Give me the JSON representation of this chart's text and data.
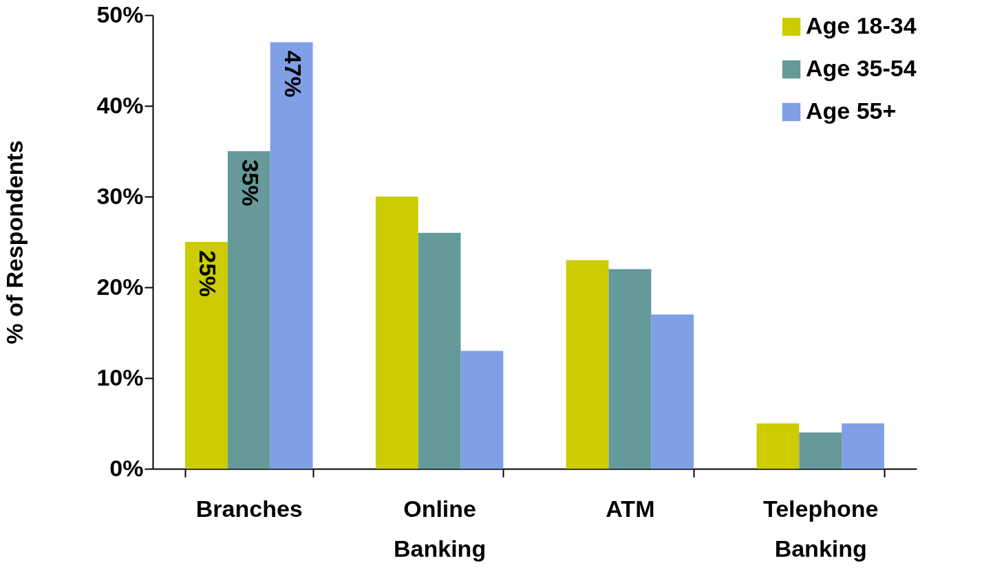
{
  "chart_data": {
    "type": "bar",
    "ylabel": "% of Respondents",
    "categories": [
      "Branches",
      "Online Banking",
      "ATM",
      "Telephone Banking"
    ],
    "series": [
      {
        "name": "Age 18-34",
        "color": "#cccc00",
        "values": [
          25,
          30,
          23,
          5
        ],
        "value_labels": [
          "25%",
          null,
          null,
          null
        ]
      },
      {
        "name": "Age 35-54",
        "color": "#669999",
        "values": [
          35,
          26,
          22,
          4
        ],
        "value_labels": [
          "35%",
          null,
          null,
          null
        ]
      },
      {
        "name": "Age 55+",
        "color": "#7f9fe6",
        "values": [
          47,
          13,
          17,
          5
        ],
        "value_labels": [
          "47%",
          null,
          null,
          null
        ]
      }
    ],
    "ylim": [
      0,
      50
    ],
    "yticks": [
      {
        "value": 0,
        "label": "0%"
      },
      {
        "value": 10,
        "label": "10%"
      },
      {
        "value": 20,
        "label": "20%"
      },
      {
        "value": 30,
        "label": "30%"
      },
      {
        "value": 40,
        "label": "40%"
      },
      {
        "value": 50,
        "label": "50%"
      }
    ],
    "grid": false,
    "legend": "top right"
  }
}
